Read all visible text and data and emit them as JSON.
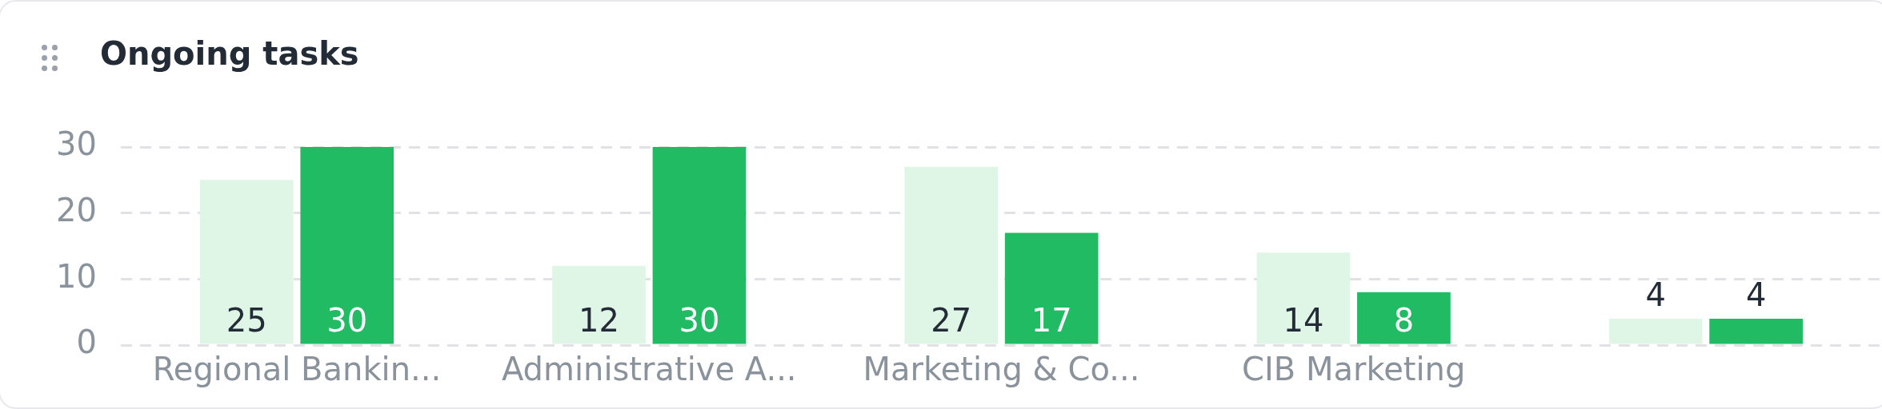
{
  "chart_data": {
    "type": "bar",
    "title": "Ongoing tasks",
    "categories": [
      "Regional Bankin...",
      "Administrative A...",
      "Marketing & Co...",
      "CIB Marketing",
      null
    ],
    "series": [
      {
        "color": "#dff5e6",
        "values": [
          25,
          12,
          27,
          14,
          4
        ]
      },
      {
        "color": "#20bb63",
        "values": [
          30,
          30,
          17,
          8,
          4
        ]
      }
    ],
    "ylim": [
      0,
      30
    ],
    "yticks": [
      0,
      10,
      20,
      30
    ],
    "grid": "y",
    "legend": false,
    "data_labels": true
  }
}
